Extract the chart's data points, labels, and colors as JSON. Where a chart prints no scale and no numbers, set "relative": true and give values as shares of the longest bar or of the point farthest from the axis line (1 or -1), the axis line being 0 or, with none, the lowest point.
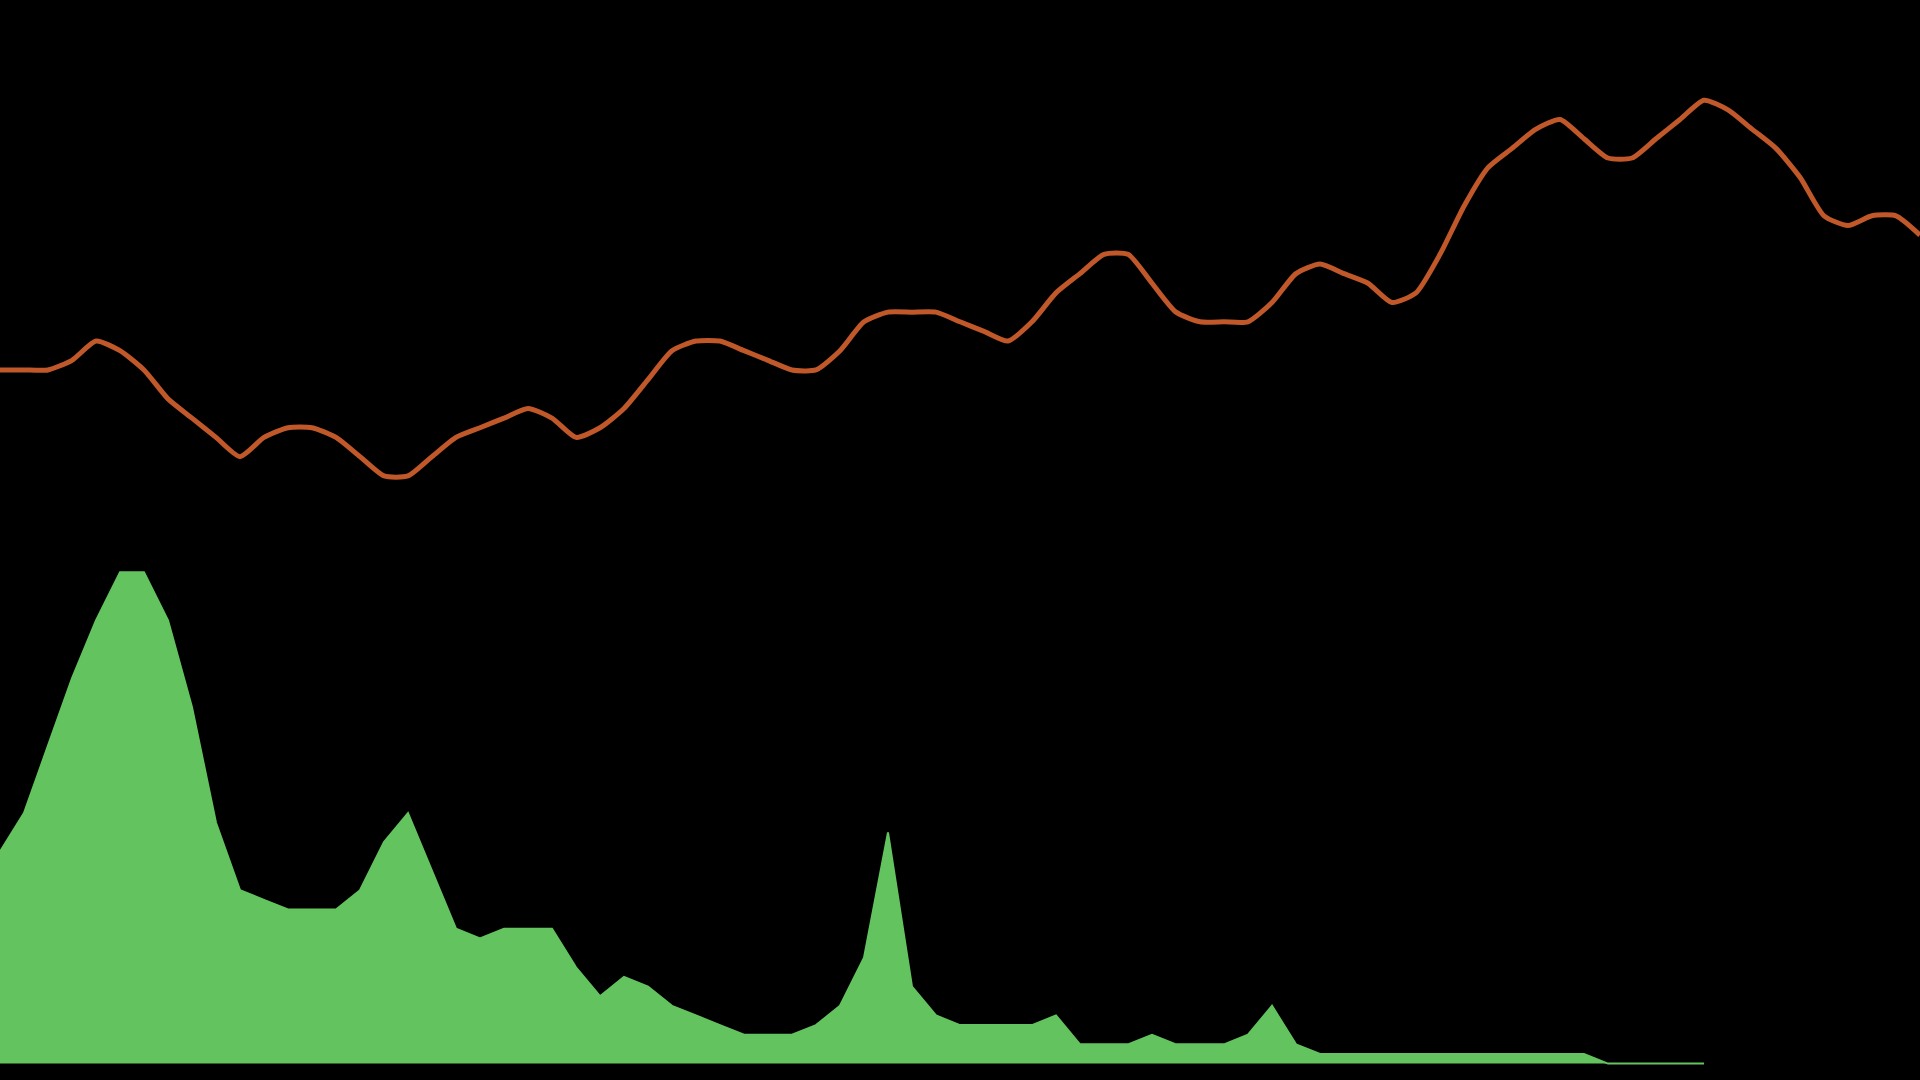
{
  "chart_data": {
    "type": "line",
    "relative": true,
    "categories": [
      null,
      null,
      null,
      null,
      null,
      null,
      null,
      null,
      null,
      null,
      null,
      null,
      null,
      null,
      null,
      null,
      null,
      null,
      null,
      null,
      null,
      null,
      null,
      null,
      null,
      null,
      null,
      null,
      null,
      null,
      null,
      null,
      null,
      null,
      null,
      null,
      null,
      null,
      null,
      null,
      null,
      null,
      null,
      null,
      null,
      null,
      null,
      null,
      null,
      null,
      null,
      null,
      null,
      null,
      null,
      null,
      null,
      null,
      null,
      null,
      null,
      null,
      null,
      null,
      null,
      null,
      null,
      null,
      null,
      null,
      null,
      null,
      null,
      null,
      null,
      null,
      null,
      null,
      null,
      null,
      null
    ],
    "series": [
      {
        "color": "#c0582a",
        "values": [
          0.72,
          0.72,
          0.72,
          0.73,
          0.75,
          0.74,
          0.72,
          0.69,
          0.67,
          0.65,
          0.63,
          0.65,
          0.66,
          0.66,
          0.65,
          0.63,
          0.61,
          0.61,
          0.63,
          0.65,
          0.66,
          0.67,
          0.68,
          0.67,
          0.65,
          0.66,
          0.68,
          0.71,
          0.74,
          0.75,
          0.75,
          0.74,
          0.73,
          0.72,
          0.72,
          0.74,
          0.77,
          0.78,
          0.78,
          0.78,
          0.77,
          0.76,
          0.75,
          0.77,
          0.8,
          0.82,
          0.84,
          0.84,
          0.81,
          0.78,
          0.77,
          0.77,
          0.77,
          0.79,
          0.82,
          0.83,
          0.82,
          0.81,
          0.79,
          0.8,
          0.84,
          0.89,
          0.93,
          0.95,
          0.97,
          0.98,
          0.96,
          0.94,
          0.94,
          0.96,
          0.98,
          1.0,
          0.99,
          0.97,
          0.95,
          0.92,
          0.88,
          0.87,
          0.88,
          0.88,
          0.86
        ]
      },
      {
        "type": "area",
        "color": "#63c35f",
        "values": [
          0.22,
          0.26,
          0.33,
          0.4,
          0.46,
          0.51,
          0.51,
          0.46,
          0.37,
          0.25,
          0.18,
          0.17,
          0.16,
          0.16,
          0.16,
          0.18,
          0.23,
          0.26,
          0.2,
          0.14,
          0.13,
          0.14,
          0.14,
          0.14,
          0.1,
          0.07,
          0.09,
          0.08,
          0.06,
          0.05,
          0.04,
          0.03,
          0.03,
          0.03,
          0.04,
          0.06,
          0.11,
          0.24,
          0.08,
          0.05,
          0.04,
          0.04,
          0.04,
          0.04,
          0.05,
          0.02,
          0.02,
          0.02,
          0.03,
          0.02,
          0.02,
          0.02,
          0.03,
          0.06,
          0.02,
          0.01,
          0.01,
          0.01,
          0.01,
          0.01,
          0.01,
          0.01,
          0.01,
          0.01,
          0.01,
          0.01,
          0.01,
          0.0,
          0.0,
          0.0,
          0.0,
          0.0,
          null,
          null,
          null,
          null,
          null,
          null,
          null,
          null,
          null
        ]
      }
    ]
  }
}
